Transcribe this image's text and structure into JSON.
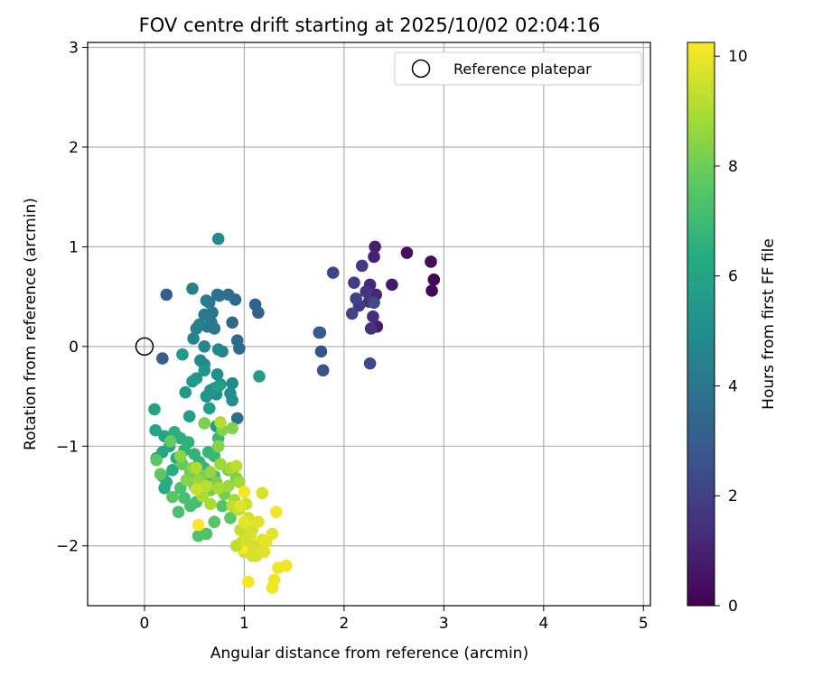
{
  "chart_data": {
    "type": "scatter",
    "title": "FOV centre drift starting at 2025/10/02 02:04:16",
    "xlabel": "Angular distance from reference (arcmin)",
    "ylabel": "Rotation from reference (arcmin)",
    "xlim": [
      -0.57,
      5.07
    ],
    "ylim": [
      -2.6,
      3.05
    ],
    "xticks": [
      0,
      1,
      2,
      3,
      4,
      5
    ],
    "yticks": [
      -2,
      -1,
      0,
      1,
      2,
      3
    ],
    "grid": true,
    "legend": {
      "position": "top-right",
      "entries": [
        "Reference platepar"
      ]
    },
    "reference_point": {
      "x": 0,
      "y": 0,
      "label": "Reference platepar"
    },
    "colorbar": {
      "label": "Hours from first FF file",
      "range": [
        0,
        10.25
      ],
      "ticks": [
        0,
        2,
        4,
        6,
        8,
        10
      ],
      "colormap": "viridis",
      "stops": [
        "#440154",
        "#472c7a",
        "#3b518b",
        "#2c718e",
        "#21908d",
        "#27ad81",
        "#5cc863",
        "#aadc32",
        "#fde725"
      ]
    },
    "point_color_rgb": [
      31,
      119,
      180
    ],
    "points": [
      [
        2.9,
        0.67,
        0.1
      ],
      [
        2.88,
        0.56,
        0.2
      ],
      [
        2.87,
        0.85,
        0.3
      ],
      [
        2.63,
        0.94,
        0.5
      ],
      [
        2.48,
        0.62,
        0.7
      ],
      [
        2.33,
        0.2,
        0.8
      ],
      [
        2.31,
        1.0,
        0.9
      ],
      [
        2.3,
        0.9,
        1.0
      ],
      [
        2.32,
        0.52,
        1.1
      ],
      [
        2.26,
        0.62,
        1.2
      ],
      [
        2.25,
        0.45,
        1.3
      ],
      [
        2.29,
        0.3,
        1.4
      ],
      [
        2.27,
        0.18,
        1.5
      ],
      [
        2.22,
        0.55,
        1.6
      ],
      [
        2.15,
        0.41,
        1.7
      ],
      [
        2.18,
        0.81,
        1.8
      ],
      [
        2.1,
        0.64,
        1.9
      ],
      [
        2.12,
        0.48,
        2.0
      ],
      [
        2.08,
        0.33,
        2.1
      ],
      [
        1.89,
        0.74,
        2.2
      ],
      [
        2.26,
        -0.17,
        2.3
      ],
      [
        2.3,
        0.44,
        2.4
      ],
      [
        1.79,
        -0.24,
        2.6
      ],
      [
        1.77,
        -0.05,
        2.7
      ],
      [
        1.75,
        0.14,
        2.8
      ],
      [
        1.76,
        0.14,
        2.9
      ],
      [
        0.22,
        0.52,
        3.0
      ],
      [
        0.18,
        -0.12,
        3.1
      ],
      [
        1.14,
        0.34,
        3.2
      ],
      [
        1.11,
        0.42,
        3.3
      ],
      [
        0.91,
        0.47,
        3.4
      ],
      [
        0.88,
        0.24,
        3.5
      ],
      [
        0.93,
        0.06,
        3.6
      ],
      [
        0.95,
        -0.02,
        3.6
      ],
      [
        0.93,
        -0.72,
        3.7
      ],
      [
        0.84,
        0.52,
        3.8
      ],
      [
        0.73,
        0.52,
        3.9
      ],
      [
        0.75,
        0.51,
        3.9
      ],
      [
        0.68,
        0.34,
        4.0
      ],
      [
        0.7,
        0.18,
        4.0
      ],
      [
        0.67,
        0.24,
        4.1
      ],
      [
        0.63,
        0.2,
        4.2
      ],
      [
        0.6,
        0.32,
        4.2
      ],
      [
        0.65,
        0.44,
        4.3
      ],
      [
        0.62,
        0.46,
        4.3
      ],
      [
        0.55,
        0.22,
        4.4
      ],
      [
        0.52,
        0.18,
        4.5
      ],
      [
        0.48,
        0.58,
        4.5
      ],
      [
        0.49,
        0.08,
        4.6
      ],
      [
        0.78,
        -0.05,
        4.6
      ],
      [
        0.6,
        0.0,
        4.7
      ],
      [
        0.56,
        -0.14,
        4.7
      ],
      [
        0.6,
        -0.18,
        4.8
      ],
      [
        0.74,
        -0.03,
        4.8
      ],
      [
        0.74,
        1.08,
        4.9
      ],
      [
        0.88,
        -0.37,
        4.9
      ],
      [
        0.88,
        -0.54,
        5.0
      ],
      [
        0.86,
        -0.47,
        5.0
      ],
      [
        0.73,
        -0.28,
        5.1
      ],
      [
        0.72,
        -0.48,
        5.1
      ],
      [
        0.76,
        -0.38,
        5.2
      ],
      [
        0.7,
        -0.42,
        5.2
      ],
      [
        0.66,
        -0.44,
        5.3
      ],
      [
        0.62,
        -0.5,
        5.3
      ],
      [
        0.6,
        -0.24,
        5.4
      ],
      [
        0.52,
        -0.32,
        5.4
      ],
      [
        0.48,
        -0.35,
        5.5
      ],
      [
        0.41,
        -0.46,
        5.5
      ],
      [
        0.38,
        -0.08,
        5.6
      ],
      [
        0.72,
        -0.8,
        5.6
      ],
      [
        1.15,
        -0.3,
        5.7
      ],
      [
        0.65,
        -0.62,
        5.7
      ],
      [
        0.45,
        -0.7,
        5.8
      ],
      [
        0.74,
        -0.4,
        5.8
      ],
      [
        0.1,
        -0.63,
        5.9
      ],
      [
        0.11,
        -0.84,
        6.0
      ],
      [
        0.2,
        -0.9,
        6.0
      ],
      [
        0.25,
        -1.0,
        6.1
      ],
      [
        0.18,
        -1.06,
        6.1
      ],
      [
        0.12,
        -1.12,
        6.2
      ],
      [
        0.18,
        -1.3,
        6.2
      ],
      [
        0.22,
        -1.36,
        6.3
      ],
      [
        0.2,
        -1.42,
        6.3
      ],
      [
        0.28,
        -1.24,
        6.4
      ],
      [
        0.32,
        -1.12,
        6.4
      ],
      [
        0.3,
        -0.86,
        6.5
      ],
      [
        0.36,
        -0.92,
        6.5
      ],
      [
        0.4,
        -1.04,
        6.6
      ],
      [
        0.44,
        -0.96,
        6.6
      ],
      [
        0.5,
        -1.08,
        6.7
      ],
      [
        0.55,
        -1.16,
        6.7
      ],
      [
        0.6,
        -1.22,
        6.8
      ],
      [
        0.64,
        -1.06,
        6.8
      ],
      [
        0.7,
        -1.1,
        6.9
      ],
      [
        0.74,
        -0.92,
        6.9
      ],
      [
        0.7,
        -1.3,
        7.0
      ],
      [
        0.62,
        -1.38,
        7.0
      ],
      [
        0.58,
        -1.5,
        7.1
      ],
      [
        0.52,
        -1.56,
        7.1
      ],
      [
        0.46,
        -1.6,
        7.2
      ],
      [
        0.4,
        -1.52,
        7.2
      ],
      [
        0.36,
        -1.42,
        7.3
      ],
      [
        0.34,
        -1.66,
        7.3
      ],
      [
        0.62,
        -1.88,
        7.4
      ],
      [
        0.54,
        -1.9,
        7.4
      ],
      [
        0.7,
        -1.76,
        7.5
      ],
      [
        0.78,
        -1.6,
        7.5
      ],
      [
        0.86,
        -1.72,
        7.6
      ],
      [
        0.28,
        -1.51,
        7.6
      ],
      [
        0.16,
        -1.28,
        7.7
      ],
      [
        0.12,
        -1.14,
        7.7
      ],
      [
        0.26,
        -0.95,
        7.8
      ],
      [
        0.38,
        -1.18,
        7.8
      ],
      [
        0.46,
        -1.26,
        7.9
      ],
      [
        0.5,
        -1.4,
        7.9
      ],
      [
        0.58,
        -1.3,
        8.0
      ],
      [
        0.66,
        -1.44,
        8.0
      ],
      [
        0.72,
        -1.36,
        8.1
      ],
      [
        0.8,
        -1.48,
        8.1
      ],
      [
        0.84,
        -1.24,
        8.2
      ],
      [
        0.92,
        -1.32,
        8.2
      ],
      [
        0.6,
        -0.77,
        8.2
      ],
      [
        0.78,
        -0.84,
        8.3
      ],
      [
        0.88,
        -0.82,
        8.3
      ],
      [
        0.74,
        -1.0,
        8.4
      ],
      [
        0.42,
        -1.34,
        8.4
      ],
      [
        0.36,
        -1.1,
        8.5
      ],
      [
        0.48,
        -1.22,
        8.5
      ],
      [
        0.54,
        -1.34,
        8.6
      ],
      [
        0.66,
        -1.26,
        8.6
      ],
      [
        0.76,
        -1.18,
        8.7
      ],
      [
        0.84,
        -1.4,
        8.7
      ],
      [
        0.9,
        -1.54,
        8.8
      ],
      [
        0.95,
        -1.36,
        8.8
      ],
      [
        0.86,
        -1.22,
        8.9
      ],
      [
        0.74,
        -1.42,
        8.9
      ],
      [
        0.66,
        -1.58,
        9.0
      ],
      [
        0.58,
        -1.5,
        9.0
      ],
      [
        0.52,
        -1.22,
        9.1
      ],
      [
        0.76,
        -0.76,
        9.1
      ],
      [
        0.92,
        -1.2,
        9.2
      ],
      [
        0.62,
        -1.4,
        9.2
      ],
      [
        0.88,
        -1.6,
        9.3
      ],
      [
        0.94,
        -1.64,
        9.3
      ],
      [
        0.96,
        -1.84,
        9.4
      ],
      [
        0.98,
        -1.96,
        9.4
      ],
      [
        1.0,
        -2.06,
        9.5
      ],
      [
        1.02,
        -1.58,
        9.5
      ],
      [
        1.04,
        -1.72,
        9.6
      ],
      [
        1.08,
        -1.84,
        9.6
      ],
      [
        1.1,
        -2.0,
        9.6
      ],
      [
        1.12,
        -2.1,
        9.7
      ],
      [
        1.06,
        -1.9,
        9.7
      ],
      [
        1.14,
        -1.76,
        9.8
      ],
      [
        1.18,
        -1.94,
        9.8
      ],
      [
        1.2,
        -2.06,
        9.8
      ],
      [
        1.22,
        -1.96,
        9.9
      ],
      [
        1.28,
        -1.88,
        9.9
      ],
      [
        1.3,
        -2.34,
        10.0
      ],
      [
        1.34,
        -2.22,
        10.0
      ],
      [
        1.42,
        -2.2,
        10.0
      ],
      [
        1.32,
        -1.66,
        10.1
      ],
      [
        1.28,
        -2.42,
        10.1
      ],
      [
        1.04,
        -2.36,
        10.1
      ],
      [
        0.98,
        -2.02,
        10.2
      ],
      [
        0.54,
        -1.79,
        10.2
      ],
      [
        0.52,
        -1.43,
        9.4
      ],
      [
        1.18,
        -1.47,
        9.7
      ],
      [
        1.0,
        -1.46,
        10.1
      ],
      [
        1.0,
        -1.76,
        9.9
      ],
      [
        0.96,
        -1.6,
        9.8
      ],
      [
        1.02,
        -1.94,
        9.6
      ],
      [
        0.92,
        -2.0,
        9.3
      ],
      [
        1.08,
        -2.1,
        9.7
      ]
    ]
  }
}
